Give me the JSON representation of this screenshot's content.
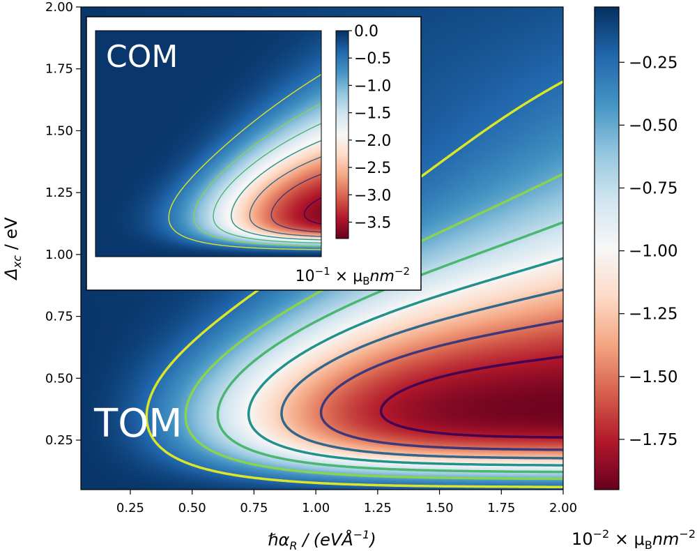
{
  "chart_data": [
    {
      "type": "heatmap",
      "panel": "main",
      "label": "TOM",
      "xlabel_main": "ℏα",
      "xlabel_sub": "R",
      "xlabel_tail": "  / (eVÅ",
      "xlabel_exp": "−1",
      "xlabel_close": ")",
      "ylabel_main": "Δ",
      "ylabel_sub": "xc",
      "ylabel_tail": " / eV",
      "xlim": [
        0.05,
        2.0
      ],
      "ylim": [
        0.05,
        2.0
      ],
      "xticks": [
        0.25,
        0.5,
        0.75,
        1.0,
        1.25,
        1.5,
        1.75,
        2.0
      ],
      "xtick_labels": [
        "0.25",
        "0.50",
        "0.75",
        "1.00",
        "1.25",
        "1.50",
        "1.75",
        "2.00"
      ],
      "yticks": [
        0.25,
        0.5,
        0.75,
        1.0,
        1.25,
        1.5,
        1.75,
        2.0
      ],
      "ytick_labels": [
        "0.25",
        "0.50",
        "0.75",
        "1.00",
        "1.25",
        "1.50",
        "1.75",
        "2.00"
      ],
      "colorbar": {
        "range": [
          -1.95,
          -0.03
        ],
        "ticks": [
          -0.25,
          -0.5,
          -0.75,
          -1.0,
          -1.25,
          -1.5,
          -1.75
        ],
        "tick_labels": [
          "−0.25",
          "−0.50",
          "−0.75",
          "−1.00",
          "−1.25",
          "−1.50",
          "−1.75"
        ],
        "unit_base": "10",
        "unit_exp": "−2",
        "unit_tail": " × μ",
        "unit_sub": "B",
        "unit_tail2": "nm",
        "unit_exp2": "−2"
      },
      "minimum": {
        "x": 1.7,
        "y": 0.33,
        "value": -1.95
      },
      "contour_levels": [
        -0.25,
        -0.5,
        -0.75,
        -1.0,
        -1.25,
        -1.5,
        -1.75
      ]
    },
    {
      "type": "heatmap",
      "panel": "inset",
      "label": "COM",
      "xlim": [
        0.05,
        2.0
      ],
      "ylim": [
        0.9,
        2.0
      ],
      "colorbar": {
        "range": [
          -3.8,
          0.0
        ],
        "ticks": [
          0.0,
          -0.5,
          -1.0,
          -1.5,
          -2.0,
          -2.5,
          -3.0,
          -3.5
        ],
        "tick_labels": [
          "0.0",
          "−0.5",
          "−1.0",
          "−1.5",
          "−2.0",
          "−2.5",
          "−3.0",
          "−3.5"
        ],
        "unit_base": "10",
        "unit_exp": "−1",
        "unit_tail": " × μ",
        "unit_sub": "B",
        "unit_tail2": "nm",
        "unit_exp2": "−2"
      },
      "minimum": {
        "x": 2.0,
        "y": 1.08,
        "value": -3.8
      },
      "contour_levels": [
        -0.5,
        -1.0,
        -1.5,
        -2.0,
        -2.5,
        -3.0,
        -3.5
      ]
    }
  ]
}
